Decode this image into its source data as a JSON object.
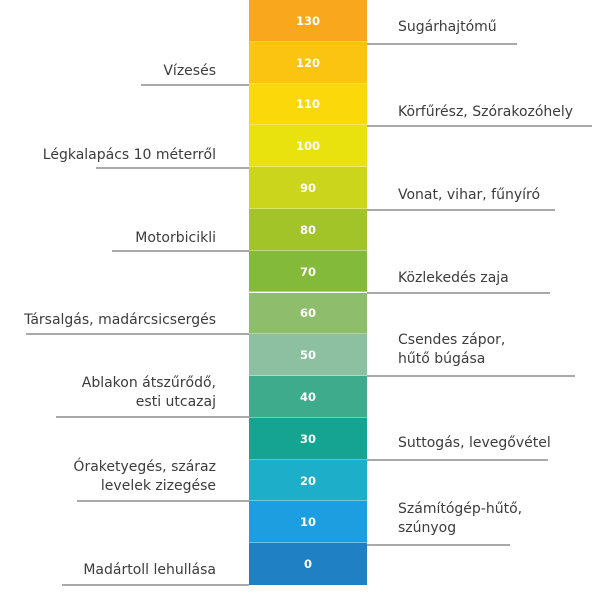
{
  "scale": {
    "levels": [
      {
        "value": "130",
        "color": "#f9a71c"
      },
      {
        "value": "120",
        "color": "#fbc410"
      },
      {
        "value": "110",
        "color": "#fbd80a"
      },
      {
        "value": "100",
        "color": "#e9e20f"
      },
      {
        "value": "90",
        "color": "#cbd51b"
      },
      {
        "value": "80",
        "color": "#a2c428"
      },
      {
        "value": "70",
        "color": "#84ba3a"
      },
      {
        "value": "60",
        "color": "#8ebd6b"
      },
      {
        "value": "50",
        "color": "#8dc0a0"
      },
      {
        "value": "40",
        "color": "#3dab8c"
      },
      {
        "value": "30",
        "color": "#14a491"
      },
      {
        "value": "20",
        "color": "#1dafc9"
      },
      {
        "value": "10",
        "color": "#1c9ee0"
      },
      {
        "value": "0",
        "color": "#1f81c3"
      }
    ]
  },
  "left_labels": [
    {
      "lines": [
        "Vízesés"
      ]
    },
    {
      "lines": [
        "Légkalapács 10 méterről"
      ]
    },
    {
      "lines": [
        "Motorbicikli"
      ]
    },
    {
      "lines": [
        "Társalgás, madárcsicsergés"
      ]
    },
    {
      "lines": [
        "Ablakon átszűrődő,",
        "esti utcazaj"
      ]
    },
    {
      "lines": [
        "Óraketyegés, száraz",
        "levelek zizegése"
      ]
    },
    {
      "lines": [
        "Madártoll lehullása"
      ]
    }
  ],
  "right_labels": [
    {
      "lines": [
        "Sugárhajtómű"
      ]
    },
    {
      "lines": [
        "Körfűrész, Szórakozóhely"
      ]
    },
    {
      "lines": [
        "Vonat, vihar, fűnyíró"
      ]
    },
    {
      "lines": [
        "Közlekedés zaja"
      ]
    },
    {
      "lines": [
        "Csendes zápor,",
        "hűtő búgása"
      ]
    },
    {
      "lines": [
        "Suttogás, levegővétel"
      ]
    },
    {
      "lines": [
        "Számítógép-hűtő,",
        "szúnyog"
      ]
    }
  ]
}
